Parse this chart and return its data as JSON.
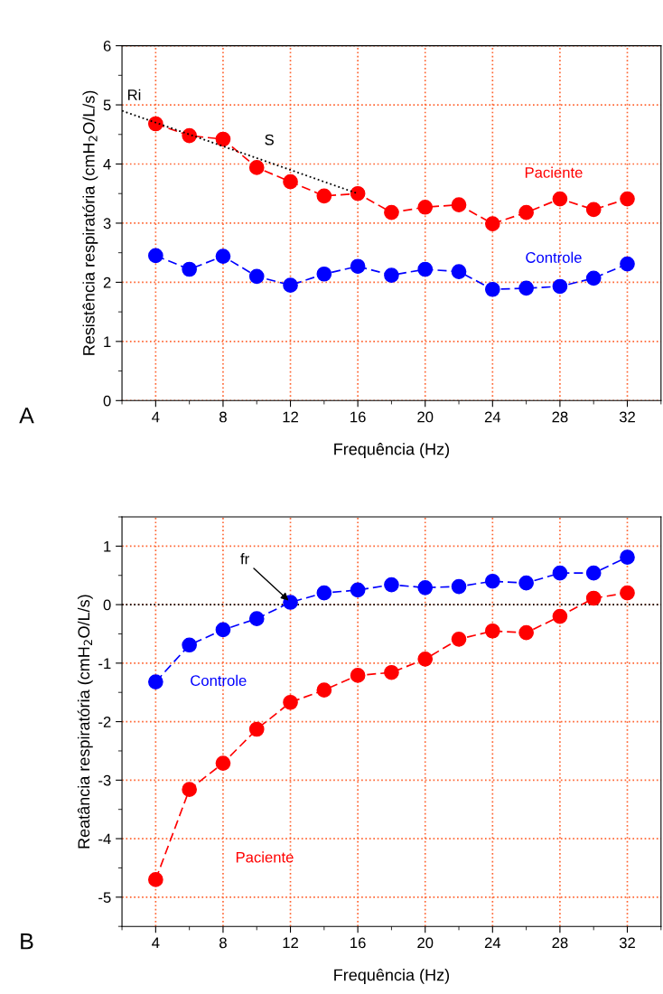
{
  "chart_data": [
    {
      "type": "line",
      "xlabel": "Frequência (Hz)",
      "ylabel": "Resistência respiratória (cmH$_{2}$O/L/s)",
      "x": [
        4,
        6,
        8,
        10,
        12,
        14,
        16,
        18,
        20,
        22,
        24,
        26,
        28,
        30,
        32
      ],
      "xlim": [
        2,
        34
      ],
      "xticks": [
        4,
        8,
        12,
        16,
        20,
        24,
        28,
        32
      ],
      "ylim": [
        0,
        6
      ],
      "yticks": [
        0,
        1,
        2,
        3,
        4,
        5,
        6
      ],
      "grid": true,
      "marker": "circle",
      "line_style": "dashed",
      "legend": false,
      "series": [
        {
          "name": "Paciente",
          "color": "#ff0000",
          "values": [
            4.68,
            4.48,
            4.42,
            3.94,
            3.7,
            3.46,
            3.5,
            3.18,
            3.27,
            3.31,
            2.99,
            3.18,
            3.41,
            3.23,
            3.41
          ]
        },
        {
          "name": "Controle",
          "color": "#0000ff",
          "values": [
            2.45,
            2.22,
            2.44,
            2.1,
            1.95,
            2.14,
            2.27,
            2.12,
            2.22,
            2.18,
            1.88,
            1.9,
            1.93,
            2.07,
            2.31
          ]
        },
        {
          "type": "line",
          "color": "#000000",
          "x": [
            2,
            16
          ],
          "values": [
            4.9,
            3.5
          ],
          "marker": "none",
          "line_style": "dotted"
        }
      ],
      "annotations": [
        "A",
        {
          "text": "Ri",
          "x": 2,
          "y": 4.9
        },
        {
          "text": "S",
          "x": 10,
          "y": 4.1
        }
      ]
    },
    {
      "type": "line",
      "xlabel": "Frequência (Hz)",
      "ylabel": "Reatância respiratória (cmH$_{2}$O/L/s)",
      "x": [
        4,
        6,
        8,
        10,
        12,
        14,
        16,
        18,
        20,
        22,
        24,
        26,
        28,
        30,
        32
      ],
      "xlim": [
        2,
        34
      ],
      "xticks": [
        4,
        8,
        12,
        16,
        20,
        24,
        28,
        32
      ],
      "ylim": [
        -5.5,
        1.5
      ],
      "yticks": [
        -5,
        -4,
        -3,
        -2,
        -1,
        0,
        1
      ],
      "grid": true,
      "marker": "circle",
      "line_style": "dashed",
      "legend": false,
      "series": [
        {
          "name": "Controle",
          "color": "#0000ff",
          "values": [
            -1.32,
            -0.69,
            -0.43,
            -0.24,
            0.04,
            0.2,
            0.25,
            0.34,
            0.29,
            0.31,
            0.4,
            0.37,
            0.54,
            0.54,
            0.81
          ]
        },
        {
          "name": "Paciente",
          "color": "#ff0000",
          "values": [
            -4.7,
            -3.16,
            -2.71,
            -2.13,
            -1.67,
            -1.46,
            -1.21,
            -1.16,
            -0.93,
            -0.59,
            -0.45,
            -0.48,
            -0.2,
            0.11,
            0.2
          ]
        }
      ],
      "ref_lines": [
        {
          "axis": "y",
          "value": 0,
          "color": "#000000",
          "line_style": "dotted"
        }
      ],
      "annotations": [
        "B",
        {
          "text": "fr",
          "x": 12,
          "y": 0.04
        }
      ]
    }
  ]
}
